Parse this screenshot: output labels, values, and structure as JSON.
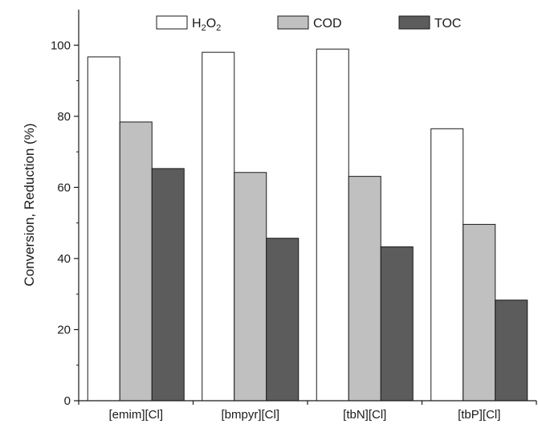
{
  "chart_data": {
    "type": "bar",
    "title": "",
    "xlabel": "",
    "ylabel": "Conversion, Reduction (%)",
    "ylim": [
      0,
      110
    ],
    "yticks": [
      "0",
      "20",
      "40",
      "60",
      "80",
      "100"
    ],
    "categories": [
      "[emim][Cl]",
      "[bmpyr][Cl]",
      "[tbN][Cl]",
      "[tbP][Cl]"
    ],
    "series": [
      {
        "name": "H2O2",
        "color": "#ffffff",
        "values": [
          96.7,
          98.0,
          98.9,
          76.5
        ]
      },
      {
        "name": "COD",
        "color": "#c0c0c0",
        "values": [
          78.4,
          64.2,
          63.1,
          49.6
        ]
      },
      {
        "name": "TOC",
        "color": "#5c5c5c",
        "values": [
          65.3,
          45.7,
          43.3,
          28.3
        ]
      }
    ],
    "grid": false,
    "legend": "top"
  }
}
